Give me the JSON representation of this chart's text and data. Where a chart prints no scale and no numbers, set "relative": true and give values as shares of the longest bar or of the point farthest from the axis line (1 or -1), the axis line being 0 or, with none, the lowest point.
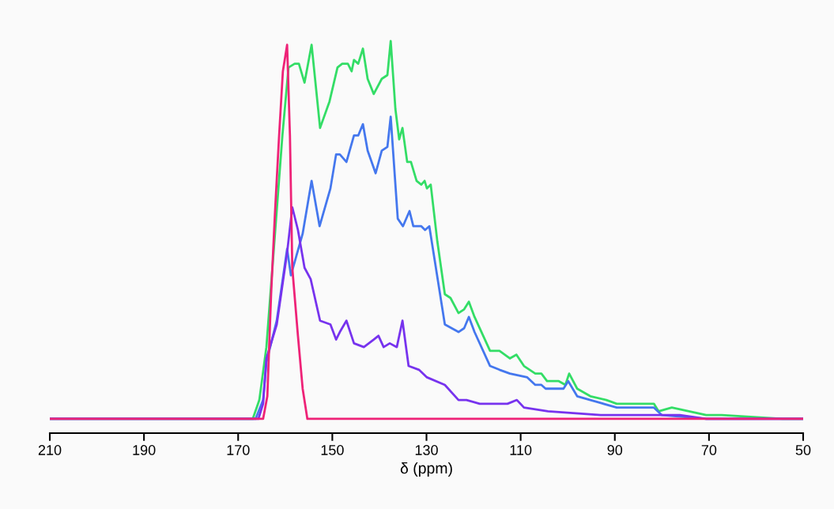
{
  "chart_data": {
    "type": "line",
    "relative": true,
    "xlabel": "δ (ppm)",
    "xlim": [
      210,
      50
    ],
    "xticks": [
      210,
      190,
      170,
      150,
      130,
      110,
      90,
      70,
      50
    ],
    "grid": false,
    "marker": "none",
    "line_style": "solid",
    "tick_labels": "x",
    "series": [
      {
        "color": "#33dd66",
        "x": [
          210,
          166.9,
          165.5,
          164.0,
          162.3,
          160.6,
          159.3,
          158.0,
          157.1,
          155.9,
          154.4,
          152.6,
          150.6,
          148.9,
          147.9,
          146.7,
          145.9,
          145.4,
          144.5,
          143.5,
          142.5,
          141.2,
          139.5,
          138.3,
          137.6,
          136.6,
          135.8,
          135.1,
          134.1,
          133.3,
          132.1,
          131.1,
          130.4,
          129.9,
          129.1,
          127.7,
          126.1,
          124.9,
          123.2,
          122.0,
          121.0,
          119.8,
          116.5,
          114.5,
          112.3,
          110.9,
          109.3,
          106.9,
          105.6,
          104.4,
          101.9,
          100.5,
          99.7,
          98.0,
          95.2,
          91.8,
          89.6,
          81.7,
          80.7,
          77.9,
          70.6,
          67.3,
          54.4,
          50
        ],
        "values": [
          0,
          0,
          0.05,
          0.19,
          0.47,
          0.75,
          0.93,
          0.94,
          0.94,
          0.89,
          0.99,
          0.77,
          0.84,
          0.93,
          0.94,
          0.94,
          0.92,
          0.95,
          0.94,
          0.98,
          0.9,
          0.86,
          0.9,
          0.91,
          1.0,
          0.82,
          0.74,
          0.77,
          0.68,
          0.68,
          0.63,
          0.62,
          0.63,
          0.61,
          0.62,
          0.47,
          0.33,
          0.32,
          0.28,
          0.29,
          0.31,
          0.27,
          0.18,
          0.18,
          0.16,
          0.17,
          0.14,
          0.12,
          0.12,
          0.1,
          0.1,
          0.09,
          0.12,
          0.08,
          0.06,
          0.05,
          0.04,
          0.04,
          0.02,
          0.03,
          0.01,
          0.01,
          0,
          0
        ]
      },
      {
        "color": "#4477ee",
        "x": [
          210,
          166.3,
          164.7,
          164.0,
          161.8,
          159.6,
          158.8,
          156.3,
          154.4,
          152.7,
          150.4,
          149.2,
          148.4,
          147.0,
          145.4,
          144.5,
          143.5,
          142.5,
          140.8,
          139.5,
          138.3,
          137.6,
          136.1,
          135.0,
          133.6,
          132.8,
          131.1,
          130.3,
          129.4,
          126.1,
          123.2,
          122.0,
          121.0,
          119.8,
          116.5,
          114.5,
          112.3,
          108.6,
          106.9,
          105.6,
          104.7,
          100.9,
          99.9,
          98.0,
          95.2,
          89.6,
          81.7,
          80.0,
          70.6,
          54.4,
          50
        ],
        "values": [
          0,
          0,
          0.05,
          0.15,
          0.26,
          0.45,
          0.38,
          0.49,
          0.63,
          0.51,
          0.61,
          0.7,
          0.7,
          0.68,
          0.75,
          0.75,
          0.78,
          0.71,
          0.65,
          0.71,
          0.72,
          0.8,
          0.53,
          0.51,
          0.55,
          0.51,
          0.51,
          0.5,
          0.51,
          0.25,
          0.23,
          0.24,
          0.27,
          0.23,
          0.14,
          0.13,
          0.12,
          0.11,
          0.09,
          0.09,
          0.08,
          0.08,
          0.1,
          0.06,
          0.05,
          0.03,
          0.03,
          0.01,
          0,
          0,
          0
        ]
      },
      {
        "color": "#7733ee",
        "x": [
          210,
          165.7,
          164.7,
          164.0,
          161.8,
          159.6,
          158.5,
          157.3,
          155.9,
          154.6,
          152.6,
          150.4,
          149.2,
          148.4,
          147.0,
          145.4,
          143.3,
          141.2,
          140.2,
          139.1,
          137.8,
          136.3,
          135.1,
          133.8,
          131.6,
          129.9,
          126.1,
          123.2,
          121.5,
          118.7,
          114.3,
          112.8,
          110.8,
          109.3,
          104.2,
          93.0,
          90.8,
          80.7,
          78.4,
          76.2,
          70.6,
          67.8,
          50
        ],
        "values": [
          0,
          0,
          0.04,
          0.16,
          0.25,
          0.44,
          0.56,
          0.5,
          0.4,
          0.37,
          0.26,
          0.25,
          0.21,
          0.23,
          0.26,
          0.2,
          0.19,
          0.21,
          0.22,
          0.19,
          0.2,
          0.19,
          0.26,
          0.14,
          0.13,
          0.11,
          0.09,
          0.05,
          0.05,
          0.04,
          0.04,
          0.04,
          0.05,
          0.03,
          0.02,
          0.01,
          0.01,
          0.01,
          0.01,
          0.01,
          0,
          0,
          0
        ]
      },
      {
        "color": "#ee2277",
        "x": [
          210,
          164.7,
          163.8,
          163.0,
          162.2,
          161.3,
          160.5,
          159.6,
          159.0,
          158.5,
          157.3,
          156.3,
          155.3,
          50
        ],
        "values": [
          0,
          0,
          0.06,
          0.33,
          0.54,
          0.75,
          0.92,
          0.99,
          0.75,
          0.4,
          0.22,
          0.08,
          0,
          0
        ]
      }
    ]
  }
}
